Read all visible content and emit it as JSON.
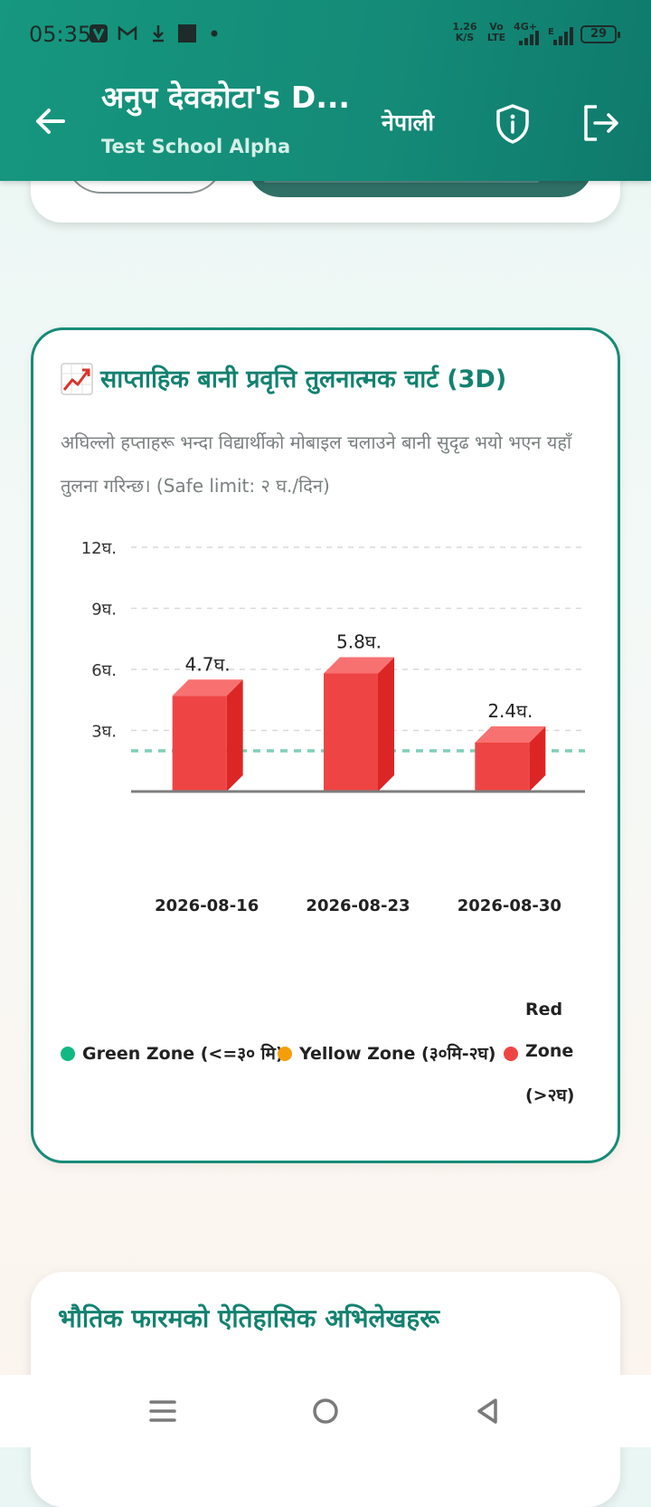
{
  "status_bar": {
    "time": "05:35",
    "net_speed_value": "1.26",
    "net_speed_unit": "K/S",
    "volte_top": "Vo",
    "volte_bottom": "LTE",
    "network": "4G+",
    "battery": "29",
    "icons": [
      "app-v-icon",
      "gmail-icon",
      "download-icon",
      "app-square-icon",
      "dot-icon",
      "signal-icon",
      "signal-2-icon"
    ]
  },
  "header": {
    "title": "अनुप देवकोटा's D...",
    "subtitle": "Test School Alpha",
    "language": "नेपाली",
    "icons": [
      "back-arrow-icon",
      "shield-info-icon",
      "logout-icon"
    ]
  },
  "chart_card": {
    "title_icon": "chart-increasing-icon",
    "title": "साप्ताहिक बानी प्रवृत्ति तुलनात्मक चार्ट (3D)",
    "description": "अघिल्लो हप्ताहरू भन्दा विद्यार्थीको मोबाइल चलाउने बानी सुदृढ भयो भएन यहाँ तुलना गरिन्छ। (Safe limit: २ घ./दिन)"
  },
  "chart_data": {
    "type": "bar",
    "categories": [
      "2026-08-16",
      "2026-08-23",
      "2026-08-30"
    ],
    "values": [
      4.7,
      5.8,
      2.4
    ],
    "value_labels": [
      "4.7घ.",
      "5.8घ.",
      "2.4घ."
    ],
    "yticks": [
      3,
      6,
      9,
      12
    ],
    "ytick_labels": [
      "3घ.",
      "6घ.",
      "9घ.",
      "12घ."
    ],
    "ylim": [
      0,
      12
    ],
    "safe_limit": 2,
    "grid": true,
    "bar_color": "#ef4444",
    "bar_side_color": "#dc2626",
    "bar_top_color": "#f87171",
    "safe_line_color": "#7fcfb8",
    "legend_position": "bottom",
    "legend": [
      {
        "label": "Green Zone (<=३० मि)",
        "color": "#10b981"
      },
      {
        "label": "Yellow Zone (३०मि-२घ)",
        "color": "#f59e0b"
      },
      {
        "label_lines": [
          "Red",
          "Zone",
          "(>२घ)"
        ],
        "color": "#ef4444"
      }
    ]
  },
  "records_card": {
    "title": "भौतिक फारमको ऐतिहासिक अभिलेखहरू"
  },
  "nav_bar": {
    "icons": [
      "menu-icon",
      "home-circle-icon",
      "back-triangle-icon"
    ]
  },
  "colors": {
    "primary": "#16977f",
    "accent_text": "#138270"
  }
}
